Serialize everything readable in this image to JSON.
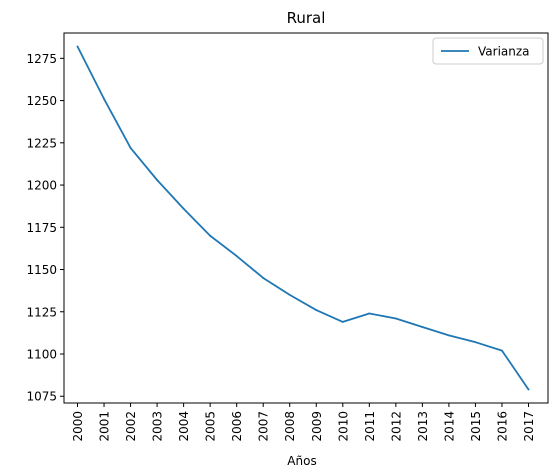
{
  "chart_data": {
    "type": "line",
    "title": "Rural",
    "xlabel": "Años",
    "ylabel": "",
    "x": [
      "2000",
      "2001",
      "2002",
      "2003",
      "2004",
      "2005",
      "2006",
      "2007",
      "2008",
      "2009",
      "2010",
      "2011",
      "2012",
      "2013",
      "2014",
      "2015",
      "2016",
      "2017"
    ],
    "series": [
      {
        "name": "Varianza",
        "values": [
          1282,
          1251,
          1222,
          1203,
          1186,
          1170,
          1158,
          1145,
          1135,
          1126,
          1119,
          1124,
          1121,
          1116,
          1111,
          1107,
          1102,
          1079
        ]
      }
    ],
    "ylim": [
      1071,
      1290
    ],
    "yticks": [
      1075,
      1100,
      1125,
      1150,
      1175,
      1200,
      1225,
      1250,
      1275
    ],
    "legend": "top-right",
    "grid": false,
    "colors": {
      "line": "#1f77b4",
      "axis": "#000000",
      "legend_border": "#cccccc"
    }
  }
}
